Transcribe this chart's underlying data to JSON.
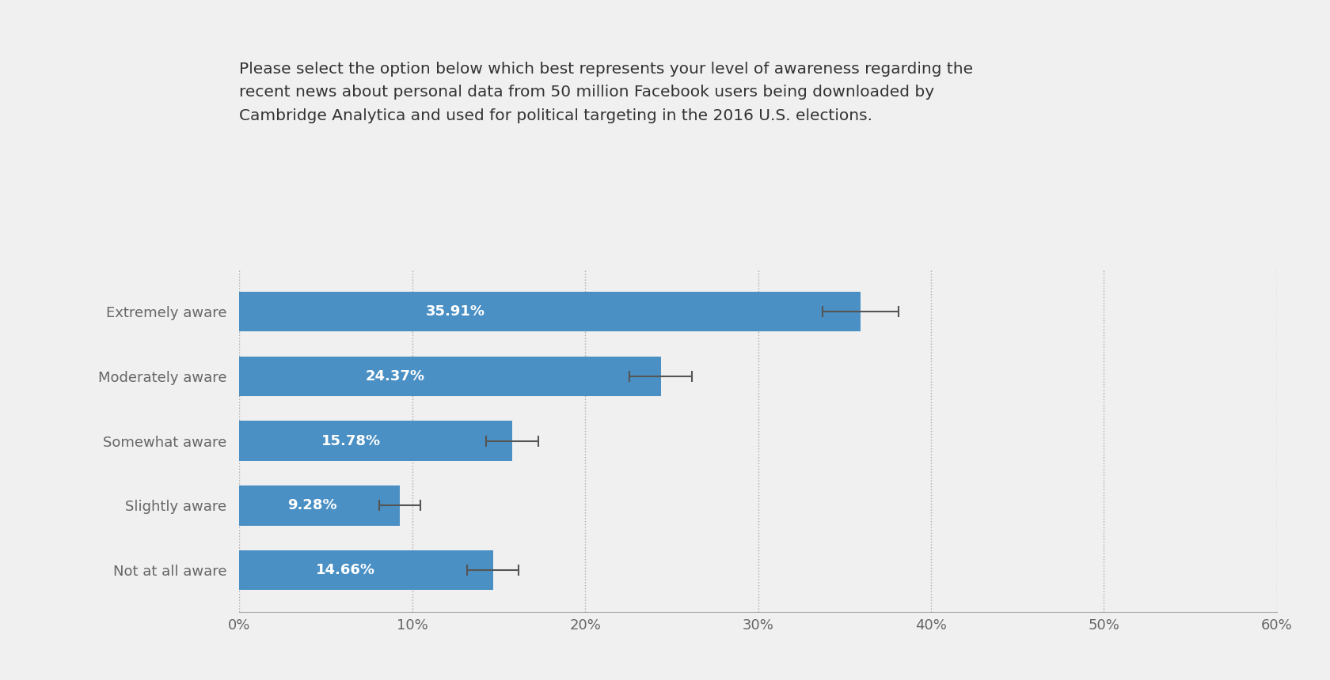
{
  "title_line1": "Please select the option below which best represents your level of awareness regarding the",
  "title_line2": "recent news about personal data from 50 million Facebook users being downloaded by",
  "title_line3": "Cambridge Analytica and used for political targeting in the 2016 U.S. elections.",
  "categories": [
    "Extremely aware",
    "Moderately aware",
    "Somewhat aware",
    "Slightly aware",
    "Not at all aware"
  ],
  "values": [
    35.91,
    24.37,
    15.78,
    9.28,
    14.66
  ],
  "errors": [
    2.2,
    1.8,
    1.5,
    1.2,
    1.5
  ],
  "bar_color": "#4a90c4",
  "background_color": "#f0f0f0",
  "text_color": "#666666",
  "label_color": "#ffffff",
  "title_color": "#333333",
  "xlim": [
    0,
    60
  ],
  "xticks": [
    0,
    10,
    20,
    30,
    40,
    50,
    60
  ],
  "xtick_labels": [
    "0%",
    "10%",
    "20%",
    "30%",
    "40%",
    "50%",
    "60%"
  ],
  "title_fontsize": 14.5,
  "label_fontsize": 13,
  "tick_fontsize": 13,
  "category_fontsize": 13,
  "bar_height": 0.62
}
